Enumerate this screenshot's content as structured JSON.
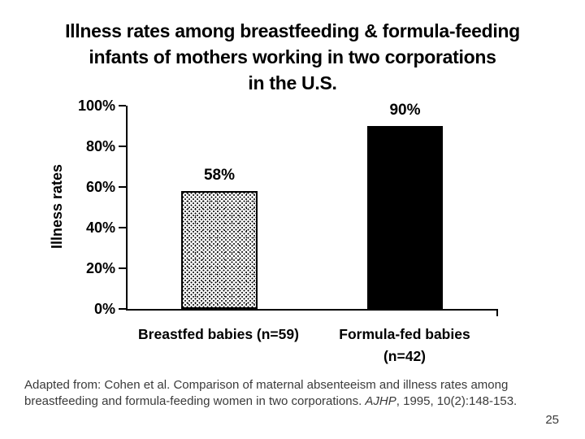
{
  "slide": {
    "title_lines": [
      "Illness rates among breastfeeding & formula-feeding",
      "infants of mothers working in two corporations",
      "in the U.S."
    ],
    "footnote": {
      "line1": "Adapted from: Cohen et al. Comparison of maternal absenteeism and illness rates among",
      "line2_pre": "breastfeeding and formula-feeding women in two corporations. ",
      "line2_italic": "AJHP",
      "line2_post": ", 1995, 10(2):148-153."
    },
    "page_number": "25"
  },
  "chart_data": {
    "type": "bar",
    "title": "Illness rates among breastfeeding & formula-feeding infants of mothers working in two corporations in the U.S.",
    "categories": [
      "Breastfed babies (n=59)",
      "Formula-fed babies (n=42)"
    ],
    "values": [
      58,
      90
    ],
    "value_labels": [
      "58%",
      "90%"
    ],
    "category_display_lines": [
      [
        "Breastfed babies (n=59)"
      ],
      [
        "Formula-fed babies",
        "(n=42)"
      ]
    ],
    "ylabel": "Illness rates",
    "xlabel": "",
    "ylim": [
      0,
      100
    ],
    "ytick_interval": 20,
    "ytick_labels": [
      "0%",
      "20%",
      "40%",
      "60%",
      "80%",
      "100%"
    ],
    "grid": false,
    "legend": "none",
    "bar_styles": [
      {
        "series": "Breastfed babies",
        "fill": "white-stipple-dots",
        "border": "#000000"
      },
      {
        "series": "Formula-fed babies",
        "fill": "#000000",
        "border": "#000000"
      }
    ],
    "colors": {
      "background": "#ffffff",
      "text": "#000000",
      "footnote_text": "#3a3a3a"
    }
  }
}
